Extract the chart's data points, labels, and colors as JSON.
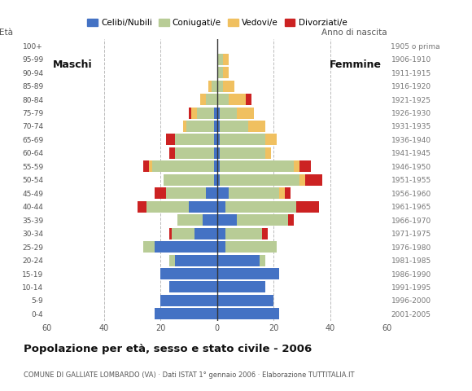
{
  "age_groups": [
    "0-4",
    "5-9",
    "10-14",
    "15-19",
    "20-24",
    "25-29",
    "30-34",
    "35-39",
    "40-44",
    "45-49",
    "50-54",
    "55-59",
    "60-64",
    "65-69",
    "70-74",
    "75-79",
    "80-84",
    "85-89",
    "90-94",
    "95-99",
    "100+"
  ],
  "birth_years": [
    "2001-2005",
    "1996-2000",
    "1991-1995",
    "1986-1990",
    "1981-1985",
    "1976-1980",
    "1971-1975",
    "1966-1970",
    "1961-1965",
    "1956-1960",
    "1951-1955",
    "1946-1950",
    "1941-1945",
    "1936-1940",
    "1931-1935",
    "1926-1930",
    "1921-1925",
    "1916-1920",
    "1911-1915",
    "1906-1910",
    "1905 o prima"
  ],
  "colors": {
    "celibi": "#4472c4",
    "coniugati": "#b8cc96",
    "vedovi": "#f0c060",
    "divorziati": "#cc2222"
  },
  "males": {
    "celibi": [
      22,
      20,
      17,
      20,
      15,
      22,
      8,
      5,
      10,
      4,
      1,
      1,
      1,
      1,
      1,
      1,
      0,
      0,
      0,
      0,
      0
    ],
    "coniugati": [
      0,
      0,
      0,
      0,
      2,
      4,
      8,
      9,
      15,
      14,
      18,
      22,
      14,
      14,
      10,
      6,
      4,
      2,
      0,
      0,
      0
    ],
    "vedovi": [
      0,
      0,
      0,
      0,
      0,
      0,
      0,
      0,
      0,
      0,
      0,
      1,
      0,
      0,
      1,
      2,
      2,
      1,
      0,
      0,
      0
    ],
    "divorziati": [
      0,
      0,
      0,
      0,
      0,
      0,
      1,
      0,
      3,
      4,
      0,
      2,
      2,
      3,
      0,
      1,
      0,
      0,
      0,
      0,
      0
    ]
  },
  "females": {
    "celibi": [
      22,
      20,
      17,
      22,
      15,
      3,
      3,
      7,
      3,
      4,
      1,
      1,
      1,
      1,
      1,
      1,
      0,
      0,
      0,
      0,
      0
    ],
    "coniugati": [
      0,
      0,
      0,
      0,
      2,
      18,
      13,
      18,
      25,
      18,
      28,
      26,
      16,
      16,
      10,
      6,
      4,
      2,
      2,
      2,
      0
    ],
    "vedovi": [
      0,
      0,
      0,
      0,
      0,
      0,
      0,
      0,
      0,
      2,
      2,
      2,
      2,
      4,
      6,
      6,
      6,
      4,
      2,
      2,
      0
    ],
    "divorziati": [
      0,
      0,
      0,
      0,
      0,
      0,
      2,
      2,
      8,
      2,
      6,
      4,
      0,
      0,
      0,
      0,
      2,
      0,
      0,
      0,
      0
    ]
  },
  "title": "Popolazione per età, sesso e stato civile - 2006",
  "subtitle": "COMUNE DI GALLIATE LOMBARDO (VA) · Dati ISTAT 1° gennaio 2006 · Elaborazione TUTTITALIA.IT",
  "xlabel_left": "Maschi",
  "xlabel_right": "Femmine",
  "ylabel_left": "Età",
  "ylabel_right": "Anno di nascita",
  "xlim": 60,
  "background_color": "#ffffff",
  "grid_color": "#bbbbbb",
  "legend_labels": [
    "Celibi/Nubili",
    "Coniugati/e",
    "Vedovi/e",
    "Divorziati/e"
  ]
}
